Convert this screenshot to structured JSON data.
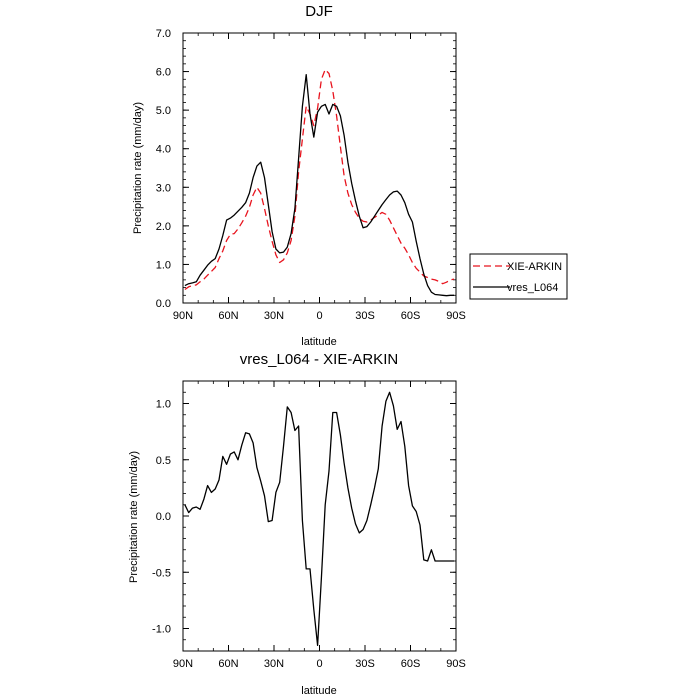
{
  "chart_data": [
    {
      "type": "line",
      "title": "DJF",
      "xlabel": "latitude",
      "ylabel": "Precipitation rate (mm/day)",
      "xlim": [
        90,
        -90
      ],
      "ylim": [
        0.0,
        7.0
      ],
      "x_ticks": [
        {
          "value": 90,
          "label": "90N"
        },
        {
          "value": 60,
          "label": "60N"
        },
        {
          "value": 30,
          "label": "30N"
        },
        {
          "value": 0,
          "label": "0"
        },
        {
          "value": -30,
          "label": "30S"
        },
        {
          "value": -60,
          "label": "60S"
        },
        {
          "value": -90,
          "label": "90S"
        }
      ],
      "y_ticks": [
        {
          "value": 0,
          "label": "0.0"
        },
        {
          "value": 1,
          "label": "1.0"
        },
        {
          "value": 2,
          "label": "2.0"
        },
        {
          "value": 3,
          "label": "3.0"
        },
        {
          "value": 4,
          "label": "4.0"
        },
        {
          "value": 5,
          "label": "5.0"
        },
        {
          "value": 6,
          "label": "6.0"
        },
        {
          "value": 7,
          "label": "7.0"
        }
      ],
      "legend_position": "right",
      "series": [
        {
          "name": "XIE-ARKIN",
          "color": "#e8141e",
          "dash": "dashed",
          "x": [
            88.75,
            86.25,
            83.75,
            81.25,
            78.75,
            76.25,
            73.75,
            71.25,
            68.75,
            66.25,
            63.75,
            61.25,
            58.75,
            56.25,
            53.75,
            51.25,
            48.75,
            46.25,
            43.75,
            41.25,
            38.75,
            36.25,
            33.75,
            31.25,
            28.75,
            26.25,
            23.75,
            21.25,
            18.75,
            16.25,
            13.75,
            11.25,
            8.75,
            6.25,
            3.75,
            1.25,
            -1.25,
            -3.75,
            -6.25,
            -8.75,
            -11.25,
            -13.75,
            -16.25,
            -18.75,
            -21.25,
            -23.75,
            -26.25,
            -28.75,
            -31.25,
            -33.75,
            -36.25,
            -38.75,
            -41.25,
            -43.75,
            -46.25,
            -48.75,
            -51.25,
            -53.75,
            -56.25,
            -58.75,
            -61.25,
            -63.75,
            -66.25,
            -68.75,
            -71.25,
            -73.75,
            -76.25,
            -78.75,
            -81.25,
            -83.75,
            -86.25,
            -88.75
          ],
          "values": [
            0.35,
            0.42,
            0.45,
            0.47,
            0.55,
            0.62,
            0.72,
            0.82,
            0.92,
            1.15,
            1.35,
            1.62,
            1.78,
            1.8,
            1.92,
            2.08,
            2.25,
            2.48,
            2.8,
            3.0,
            2.85,
            2.45,
            2.0,
            1.6,
            1.25,
            1.05,
            1.12,
            1.3,
            1.62,
            2.25,
            3.4,
            4.25,
            5.1,
            4.9,
            4.6,
            5.05,
            5.8,
            6.05,
            5.95,
            5.5,
            4.85,
            4.05,
            3.3,
            2.85,
            2.55,
            2.35,
            2.2,
            2.12,
            2.1,
            2.15,
            2.22,
            2.28,
            2.35,
            2.3,
            2.15,
            1.95,
            1.75,
            1.55,
            1.42,
            1.25,
            1.05,
            0.9,
            0.8,
            0.7,
            0.66,
            0.62,
            0.6,
            0.56,
            0.5,
            0.54,
            0.6,
            0.62
          ]
        },
        {
          "name": "vres_L064",
          "color": "#000000",
          "dash": "solid",
          "x": [
            88.75,
            86.25,
            83.75,
            81.25,
            78.75,
            76.25,
            73.75,
            71.25,
            68.75,
            66.25,
            63.75,
            61.25,
            58.75,
            56.25,
            53.75,
            51.25,
            48.75,
            46.25,
            43.75,
            41.25,
            38.75,
            36.25,
            33.75,
            31.25,
            28.75,
            26.25,
            23.75,
            21.25,
            18.75,
            16.25,
            13.75,
            11.25,
            8.75,
            6.25,
            3.75,
            1.25,
            -1.25,
            -3.75,
            -6.25,
            -8.75,
            -11.25,
            -13.75,
            -16.25,
            -18.75,
            -21.25,
            -23.75,
            -26.25,
            -28.75,
            -31.25,
            -33.75,
            -36.25,
            -38.75,
            -41.25,
            -43.75,
            -46.25,
            -48.75,
            -51.25,
            -53.75,
            -56.25,
            -58.75,
            -61.25,
            -63.75,
            -66.25,
            -68.75,
            -71.25,
            -73.75,
            -76.25,
            -78.75,
            -81.25,
            -83.75,
            -86.25,
            -88.75
          ],
          "values": [
            0.45,
            0.5,
            0.52,
            0.55,
            0.72,
            0.85,
            0.98,
            1.08,
            1.15,
            1.4,
            1.75,
            2.15,
            2.2,
            2.28,
            2.38,
            2.48,
            2.6,
            2.85,
            3.25,
            3.55,
            3.65,
            3.25,
            2.55,
            1.85,
            1.4,
            1.3,
            1.32,
            1.45,
            1.8,
            2.45,
            3.75,
            5.1,
            5.92,
            4.9,
            4.3,
            4.95,
            5.1,
            5.15,
            4.9,
            5.15,
            5.1,
            4.85,
            4.35,
            3.65,
            3.1,
            2.65,
            2.25,
            1.95,
            1.98,
            2.1,
            2.25,
            2.4,
            2.55,
            2.68,
            2.8,
            2.88,
            2.9,
            2.8,
            2.6,
            2.3,
            2.1,
            1.6,
            1.15,
            0.75,
            0.45,
            0.28,
            0.22,
            0.21,
            0.2,
            0.19,
            0.2,
            0.2
          ]
        }
      ]
    },
    {
      "type": "line",
      "title": "vres_L064 - XIE-ARKIN",
      "xlabel": "latitude",
      "ylabel": "Precipitation rate (mm/day)",
      "xlim": [
        90,
        -90
      ],
      "ylim": [
        -1.2,
        1.2
      ],
      "x_ticks": [
        {
          "value": 90,
          "label": "90N"
        },
        {
          "value": 60,
          "label": "60N"
        },
        {
          "value": 30,
          "label": "30N"
        },
        {
          "value": 0,
          "label": "0"
        },
        {
          "value": -30,
          "label": "30S"
        },
        {
          "value": -60,
          "label": "60S"
        },
        {
          "value": -90,
          "label": "90S"
        }
      ],
      "y_ticks": [
        {
          "value": -1.0,
          "label": "-1.0"
        },
        {
          "value": -0.5,
          "label": "-0.5"
        },
        {
          "value": 0.0,
          "label": "0.0"
        },
        {
          "value": 0.5,
          "label": "0.5"
        },
        {
          "value": 1.0,
          "label": "1.0"
        }
      ],
      "series": [
        {
          "color": "#000000",
          "dash": "solid",
          "x": [
            88.75,
            86.25,
            83.75,
            81.25,
            78.75,
            76.25,
            73.75,
            71.25,
            68.75,
            66.25,
            63.75,
            61.25,
            58.75,
            56.25,
            53.75,
            51.25,
            48.75,
            46.25,
            43.75,
            41.25,
            38.75,
            36.25,
            33.75,
            31.25,
            28.75,
            26.25,
            23.75,
            21.25,
            18.75,
            16.25,
            13.75,
            11.25,
            8.75,
            6.25,
            3.75,
            1.25,
            -1.25,
            -3.75,
            -6.25,
            -8.75,
            -11.25,
            -13.75,
            -16.25,
            -18.75,
            -21.25,
            -23.75,
            -26.25,
            -28.75,
            -31.25,
            -33.75,
            -36.25,
            -38.75,
            -41.25,
            -43.75,
            -46.25,
            -48.75,
            -51.25,
            -53.75,
            -56.25,
            -58.75,
            -61.25,
            -63.75,
            -66.25,
            -68.75,
            -71.25,
            -73.75,
            -76.25,
            -78.75,
            -81.25,
            -83.75,
            -86.25,
            -88.75
          ],
          "values": [
            0.1,
            0.03,
            0.07,
            0.08,
            0.06,
            0.15,
            0.27,
            0.21,
            0.24,
            0.32,
            0.53,
            0.46,
            0.55,
            0.57,
            0.5,
            0.63,
            0.74,
            0.73,
            0.65,
            0.43,
            0.31,
            0.18,
            -0.05,
            -0.04,
            0.21,
            0.3,
            0.62,
            0.97,
            0.92,
            0.76,
            0.8,
            -0.04,
            -0.47,
            -0.47,
            -0.83,
            -1.15,
            -0.55,
            0.1,
            0.4,
            0.92,
            0.92,
            0.72,
            0.47,
            0.25,
            0.07,
            -0.07,
            -0.15,
            -0.12,
            -0.04,
            0.1,
            0.25,
            0.42,
            0.8,
            1.02,
            1.1,
            0.98,
            0.77,
            0.84,
            0.62,
            0.27,
            0.09,
            0.04,
            -0.08,
            -0.39,
            -0.4,
            -0.3,
            -0.4,
            -0.4,
            -0.4,
            -0.4,
            -0.4,
            -0.4
          ]
        }
      ]
    }
  ]
}
